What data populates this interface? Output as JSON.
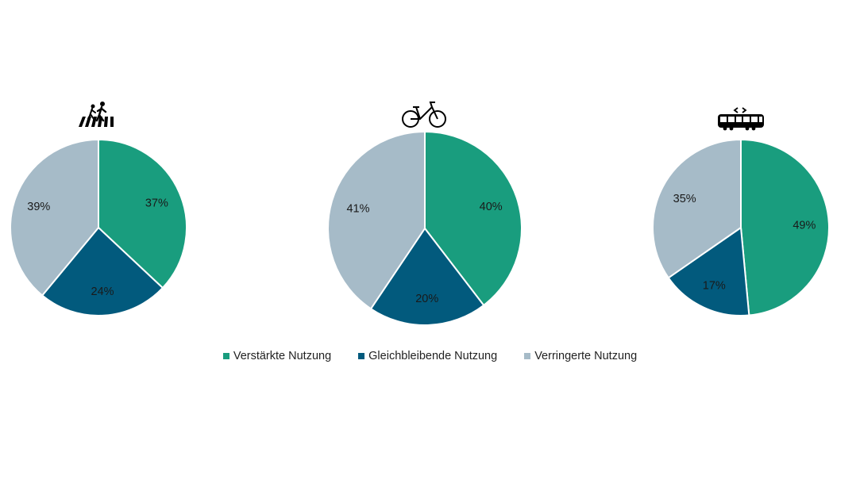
{
  "chart_data": [
    {
      "type": "pie",
      "icon": "pedestrian-crossing-icon",
      "categories": [
        "Verstärkte Nutzung",
        "Gleichbleibende Nutzung",
        "Verringerte Nutzung"
      ],
      "values": [
        37,
        24,
        39
      ],
      "labels": [
        "37%",
        "24%",
        "39%"
      ]
    },
    {
      "type": "pie",
      "icon": "bicycle-icon",
      "categories": [
        "Verstärkte Nutzung",
        "Gleichbleibende Nutzung",
        "Verringerte Nutzung"
      ],
      "values": [
        40,
        20,
        41
      ],
      "labels": [
        "40%",
        "20%",
        "41%"
      ]
    },
    {
      "type": "pie",
      "icon": "tram-icon",
      "categories": [
        "Verstärkte Nutzung",
        "Gleichbleibende Nutzung",
        "Verringerte Nutzung"
      ],
      "values": [
        49,
        17,
        35
      ],
      "labels": [
        "49%",
        "17%",
        "35%"
      ]
    }
  ],
  "legend": {
    "items": [
      {
        "label": "Verstärkte Nutzung",
        "color": "#199d7e"
      },
      {
        "label": "Gleichbleibende Nutzung",
        "color": "#025a7d"
      },
      {
        "label": "Verringerte Nutzung",
        "color": "#a6bbc8"
      }
    ],
    "placement": "bottom"
  }
}
